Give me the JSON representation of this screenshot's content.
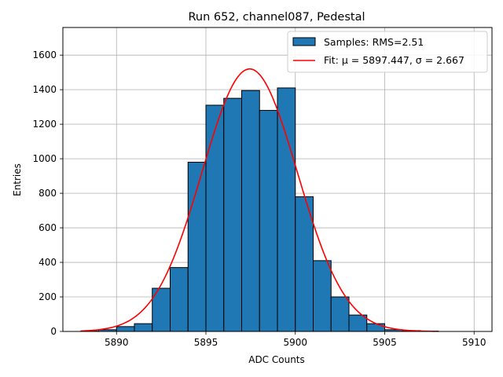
{
  "chart_data": {
    "type": "bar",
    "title": "Run 652, channel087, Pedestal",
    "xlabel": "ADC Counts",
    "ylabel": "Entries",
    "xlim": [
      5887.0,
      5911.0
    ],
    "ylim": [
      0,
      1760
    ],
    "xticks": [
      5890,
      5895,
      5900,
      5905,
      5910
    ],
    "yticks": [
      0,
      200,
      400,
      600,
      800,
      1000,
      1200,
      1400,
      1600
    ],
    "grid": true,
    "legend_position": "top-right",
    "bins": {
      "edges": [
        5888,
        5889,
        5890,
        5891,
        5892,
        5893,
        5894,
        5895,
        5896,
        5897,
        5898,
        5899,
        5900,
        5901,
        5902,
        5903,
        5904,
        5905,
        5906,
        5907,
        5908
      ],
      "counts": [
        2,
        10,
        28,
        45,
        250,
        370,
        980,
        1310,
        1350,
        1395,
        1280,
        1410,
        780,
        410,
        200,
        95,
        45,
        10,
        5,
        2
      ]
    },
    "series": [
      {
        "name": "Samples: RMS=2.51",
        "kind": "histogram",
        "color": "#1f77b4",
        "edgecolor": "#000000"
      },
      {
        "name": "Fit: μ = 5897.447, σ = 2.667",
        "kind": "line",
        "color": "#ff0000",
        "fit": {
          "function": "gaussian",
          "amplitude": 1520,
          "mu": 5897.447,
          "sigma": 2.667,
          "x_range": [
            5888,
            5908
          ]
        }
      }
    ]
  }
}
